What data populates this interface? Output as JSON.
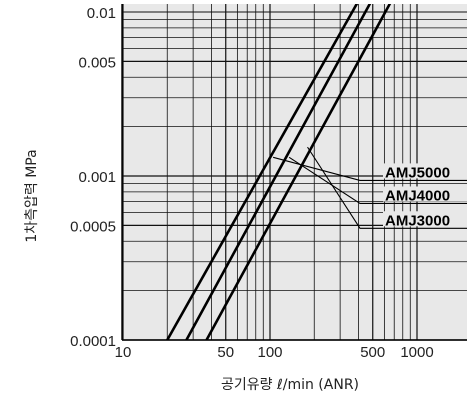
{
  "chart_data": {
    "type": "line",
    "xlabel": "공기유량 ℓ/min  (ANR)",
    "ylabel": "1차측압력 MPa",
    "x_scale": "log",
    "y_scale": "log",
    "xlim": [
      10,
      1000
    ],
    "ylim": [
      0.0001,
      0.01
    ],
    "x_ticks": [
      {
        "value": 10,
        "label": "10"
      },
      {
        "value": 50,
        "label": "50"
      },
      {
        "value": 100,
        "label": "100"
      },
      {
        "value": 500,
        "label": "500"
      },
      {
        "value": 1000,
        "label": "1000"
      }
    ],
    "y_ticks": [
      {
        "value": 0.0001,
        "label": "0.0001"
      },
      {
        "value": 0.0005,
        "label": "0.0005"
      },
      {
        "value": 0.001,
        "label": "0.001"
      },
      {
        "value": 0.005,
        "label": "0.005"
      },
      {
        "value": 0.01,
        "label": "0.01"
      }
    ],
    "grid": true,
    "series": [
      {
        "name": "AMJ5000",
        "x": [
          20,
          400
        ],
        "y": [
          0.0001,
          0.0117
        ]
      },
      {
        "name": "AMJ4000",
        "x": [
          27,
          490
        ],
        "y": [
          0.0001,
          0.0117
        ]
      },
      {
        "name": "AMJ3000",
        "x": [
          37,
          670
        ],
        "y": [
          0.0001,
          0.0117
        ]
      }
    ],
    "annotations": [
      {
        "text": "AMJ5000",
        "series": "AMJ5000",
        "point": [
          105,
          0.0013
        ],
        "label_y": 0.00094
      },
      {
        "text": "AMJ4000",
        "series": "AMJ4000",
        "point": [
          135,
          0.0013
        ],
        "label_y": 0.00068
      },
      {
        "text": "AMJ3000",
        "series": "AMJ3000",
        "point": [
          180,
          0.0015
        ],
        "label_y": 0.00048
      }
    ],
    "colors": {
      "line": "#000000",
      "grid": "#111111",
      "plot_bg": "#e8e8e8"
    }
  }
}
